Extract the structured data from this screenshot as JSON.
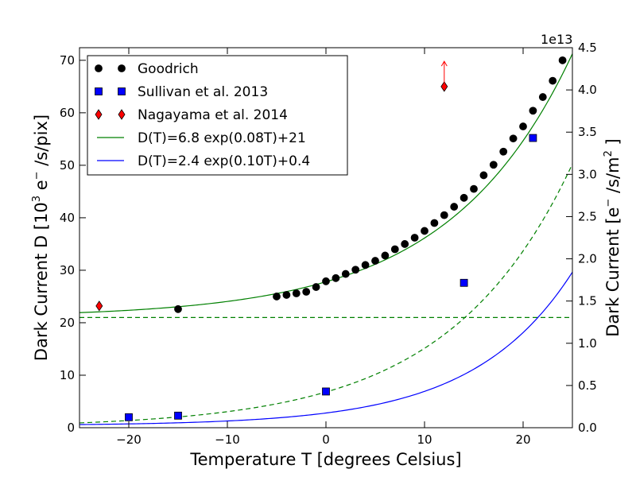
{
  "chart_data": {
    "type": "scatter",
    "xlabel": "Temperature T [degrees Celsius]",
    "ylabel_main": "Dark Current D [10",
    "ylabel_sup": "3",
    "ylabel_mid": " e",
    "ylabel_sup2": "−",
    "ylabel_end": " /s/pix]",
    "y2label_main": "Dark Current [e",
    "y2label_sup": "−",
    "y2label_mid": " /s/m",
    "y2label_sup2": "2",
    "y2label_end": " ]",
    "y2_offset_label": "1e13",
    "xlim": [
      -25,
      25
    ],
    "ylim": [
      0,
      72.4
    ],
    "y2lim": [
      0,
      4.5
    ],
    "x_ticks": [
      -20,
      -10,
      0,
      10,
      20
    ],
    "x_tick_labels": [
      "−20",
      "−10",
      "0",
      "10",
      "20"
    ],
    "y_ticks": [
      0,
      10,
      20,
      30,
      40,
      50,
      60,
      70
    ],
    "y_tick_labels": [
      "0",
      "10",
      "20",
      "30",
      "40",
      "50",
      "60",
      "70"
    ],
    "y2_ticks": [
      0.0,
      0.5,
      1.0,
      1.5,
      2.0,
      2.5,
      3.0,
      3.5,
      4.0,
      4.5
    ],
    "y2_tick_labels": [
      "0.0",
      "0.5",
      "1.0",
      "1.5",
      "2.0",
      "2.5",
      "3.0",
      "3.5",
      "4.0",
      "4.5"
    ],
    "series": [
      {
        "name": "Goodrich",
        "marker": "circle",
        "color": "#000000",
        "x": [
          -15,
          -5,
          -4,
          -3,
          -2,
          -1,
          0,
          1,
          2,
          3,
          4,
          5,
          6,
          7,
          8,
          9,
          10,
          11,
          12,
          13,
          14,
          15,
          16,
          17,
          18,
          19,
          20,
          21,
          22,
          23,
          24
        ],
        "y": [
          22.6,
          25.0,
          25.3,
          25.6,
          25.9,
          26.8,
          27.9,
          28.5,
          29.3,
          30.1,
          31.0,
          31.8,
          32.8,
          34.0,
          35.0,
          36.2,
          37.5,
          39.0,
          40.5,
          42.1,
          43.8,
          45.5,
          48.1,
          50.1,
          52.6,
          55.1,
          57.4,
          60.4,
          63.0,
          66.1,
          70.0
        ]
      },
      {
        "name": "Sullivan et al. 2013",
        "marker": "square",
        "color": "#0000ff",
        "x": [
          -20,
          -15,
          0,
          14,
          21
        ],
        "y": [
          2.0,
          2.3,
          6.9,
          27.6,
          55.2
        ]
      },
      {
        "name": "Nagayama et al. 2014",
        "marker": "diamond",
        "color": "#ff0000",
        "x": [
          -23,
          12
        ],
        "y": [
          23.2,
          65.0
        ]
      }
    ],
    "fits": [
      {
        "name": "D(T)=6.8 exp(0.08T)+21",
        "color": "#008000",
        "a": 6.8,
        "b": 0.08,
        "c": 21
      },
      {
        "name": "D(T)=2.4 exp(0.10T)+0.4",
        "color": "#0000ff",
        "a": 2.4,
        "b": 0.1,
        "c": 0.4
      }
    ],
    "reference_lines": [
      {
        "kind": "horizontal",
        "y": 21,
        "color": "#008000",
        "style": "dashed"
      },
      {
        "kind": "curve",
        "a": 6.8,
        "b": 0.08,
        "c": 0,
        "color": "#008000",
        "style": "dashed"
      }
    ],
    "lower_limit_arrow": {
      "x": 12,
      "y_from": 65.0,
      "y_to": 69.8,
      "color": "#ff0000"
    },
    "legend_position": "top-left"
  }
}
